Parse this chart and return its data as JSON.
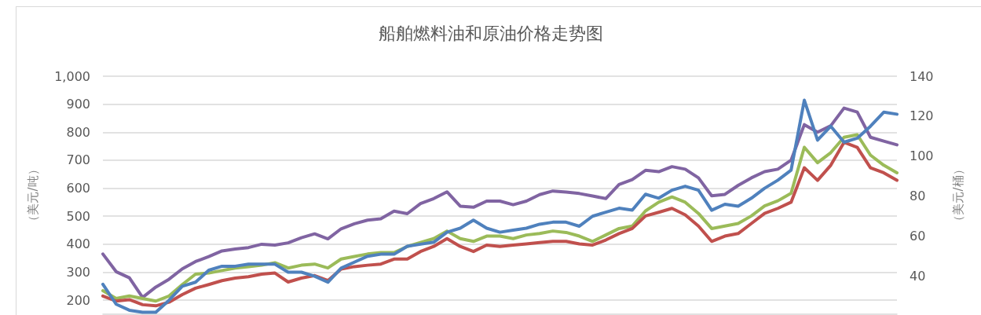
{
  "chart_data": {
    "type": "line",
    "title": "船舶燃料油和原油价格走势图",
    "ylabel": "（美元/吨）",
    "y2label": "（美元/桶）",
    "categories": [
      null,
      null,
      null,
      null,
      null,
      null,
      null,
      null,
      null,
      null,
      null,
      null,
      null,
      null,
      null,
      null,
      null,
      null,
      null,
      null,
      null,
      null,
      null,
      null,
      null,
      null,
      null,
      null,
      null,
      null,
      null,
      null,
      null,
      null,
      null,
      null,
      null,
      null,
      null,
      null,
      null,
      null,
      null,
      null,
      null,
      null,
      null,
      null,
      null,
      null,
      null,
      null,
      null,
      null,
      null,
      null,
      null,
      null,
      null,
      null,
      null
    ],
    "series": [
      {
        "color": "#8064a2",
        "values": [
          365,
          302,
          280,
          210,
          247,
          275,
          312,
          338,
          356,
          376,
          383,
          388,
          400,
          397,
          405,
          423,
          437,
          419,
          455,
          473,
          486,
          491,
          518,
          509,
          545,
          563,
          587,
          536,
          532,
          554,
          554,
          541,
          554,
          577,
          590,
          586,
          581,
          572,
          563,
          613,
          631,
          664,
          659,
          677,
          668,
          637,
          573,
          578,
          610,
          637,
          659,
          668,
          700,
          827,
          800,
          823,
          886,
          872,
          782,
          768,
          755
        ]
      },
      {
        "color": "#9bbb59",
        "values": [
          234,
          206,
          215,
          206,
          197,
          215,
          256,
          293,
          297,
          306,
          315,
          320,
          325,
          334,
          315,
          325,
          329,
          315,
          347,
          356,
          365,
          370,
          370,
          392,
          406,
          420,
          447,
          420,
          410,
          429,
          429,
          420,
          433,
          438,
          447,
          442,
          429,
          410,
          433,
          456,
          465,
          519,
          550,
          569,
          550,
          510,
          456,
          465,
          474,
          501,
          537,
          555,
          582,
          746,
          691,
          727,
          782,
          791,
          718,
          682,
          655
        ]
      },
      {
        "color": "#c0504d",
        "values": [
          215,
          197,
          202,
          184,
          180,
          193,
          220,
          243,
          256,
          270,
          279,
          284,
          293,
          297,
          265,
          279,
          288,
          270,
          311,
          320,
          325,
          329,
          347,
          347,
          374,
          392,
          420,
          392,
          374,
          397,
          392,
          397,
          401,
          406,
          410,
          410,
          401,
          397,
          415,
          438,
          456,
          501,
          514,
          528,
          505,
          465,
          410,
          429,
          438,
          474,
          510,
          528,
          550,
          673,
          628,
          682,
          764,
          746,
          673,
          655,
          628
        ]
      },
      {
        "color": "#4f81bd",
        "axis": "y2",
        "values": [
          36,
          26,
          23,
          22,
          22,
          28,
          35,
          37,
          43,
          45,
          45,
          46,
          46,
          46,
          42,
          42,
          40,
          37,
          44,
          47,
          50,
          51,
          51,
          55,
          56,
          57,
          62,
          64,
          68,
          64,
          62,
          63,
          64,
          66,
          67,
          67,
          65,
          70,
          72,
          74,
          73,
          81,
          79,
          83,
          85,
          83,
          73,
          76,
          75,
          79,
          84,
          88,
          93,
          128,
          108,
          115,
          107,
          109,
          115,
          122,
          121
        ]
      }
    ],
    "ylim": [
      150,
      1000
    ],
    "yticks": [
      200,
      300,
      400,
      500,
      600,
      700,
      800,
      900,
      {
        "value": 1000,
        "label": "1,000"
      }
    ],
    "y2lim": [
      21,
      140
    ],
    "y2ticks": [
      40,
      60,
      80,
      100,
      120,
      140
    ],
    "grid": "y",
    "tick_labels": "y",
    "marker": "none"
  }
}
